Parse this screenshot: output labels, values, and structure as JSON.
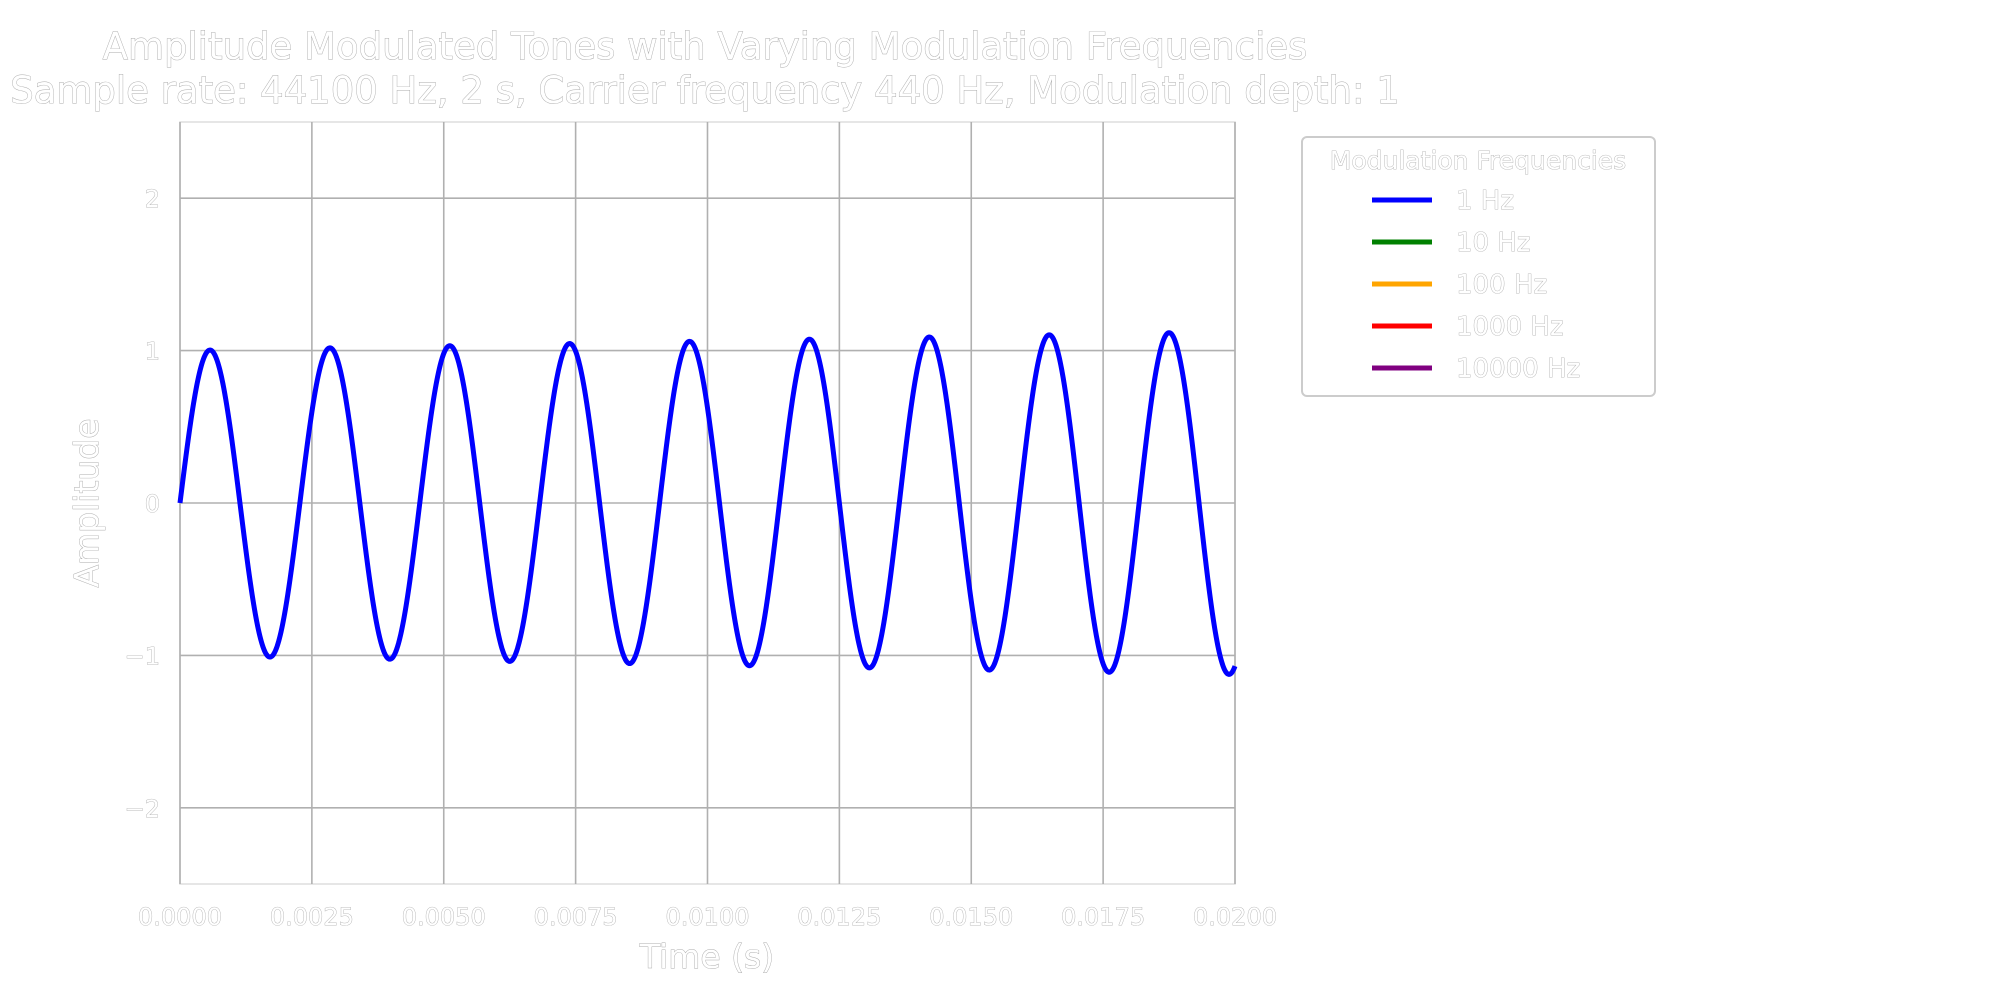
{
  "chart_data": {
    "type": "line",
    "title": "Amplitude Modulated Tones with Varying Modulation Frequencies",
    "subtitle": "Sample rate: 44100 Hz, 2 s, Carrier frequency  440 Hz, Modulation depth: 1",
    "xlabel": "Time (s)",
    "ylabel": "Amplitude",
    "xlim": [
      0.0,
      0.02
    ],
    "ylim": [
      -2.5,
      2.5
    ],
    "x_ticks": [
      0.0,
      0.0025,
      0.005,
      0.0075,
      0.01,
      0.0125,
      0.015,
      0.0175,
      0.02
    ],
    "x_tick_labels": [
      "0.0000",
      "0.0025",
      "0.0050",
      "0.0075",
      "0.0100",
      "0.0125",
      "0.0150",
      "0.0175",
      "0.0200"
    ],
    "y_ticks": [
      -2,
      -1,
      0,
      1,
      2
    ],
    "y_tick_labels": [
      "−2",
      "−1",
      "0",
      "1",
      "2"
    ],
    "grid": true,
    "legend_title": "Modulation Frequencies",
    "legend_position": "outside-top-right",
    "carrier_frequency_hz": 440,
    "modulation_depth": 1,
    "series": [
      {
        "name": "1 Hz",
        "modulation_frequency_hz": 1,
        "color": "#0000ff",
        "visible": true
      },
      {
        "name": "10 Hz",
        "modulation_frequency_hz": 10,
        "color": "#008000",
        "visible": false
      },
      {
        "name": "100 Hz",
        "modulation_frequency_hz": 100,
        "color": "#ffa500",
        "visible": false
      },
      {
        "name": "1000 Hz",
        "modulation_frequency_hz": 1000,
        "color": "#ff0000",
        "visible": false
      },
      {
        "name": "10000 Hz",
        "modulation_frequency_hz": 10000,
        "color": "#800080",
        "visible": false
      }
    ]
  }
}
